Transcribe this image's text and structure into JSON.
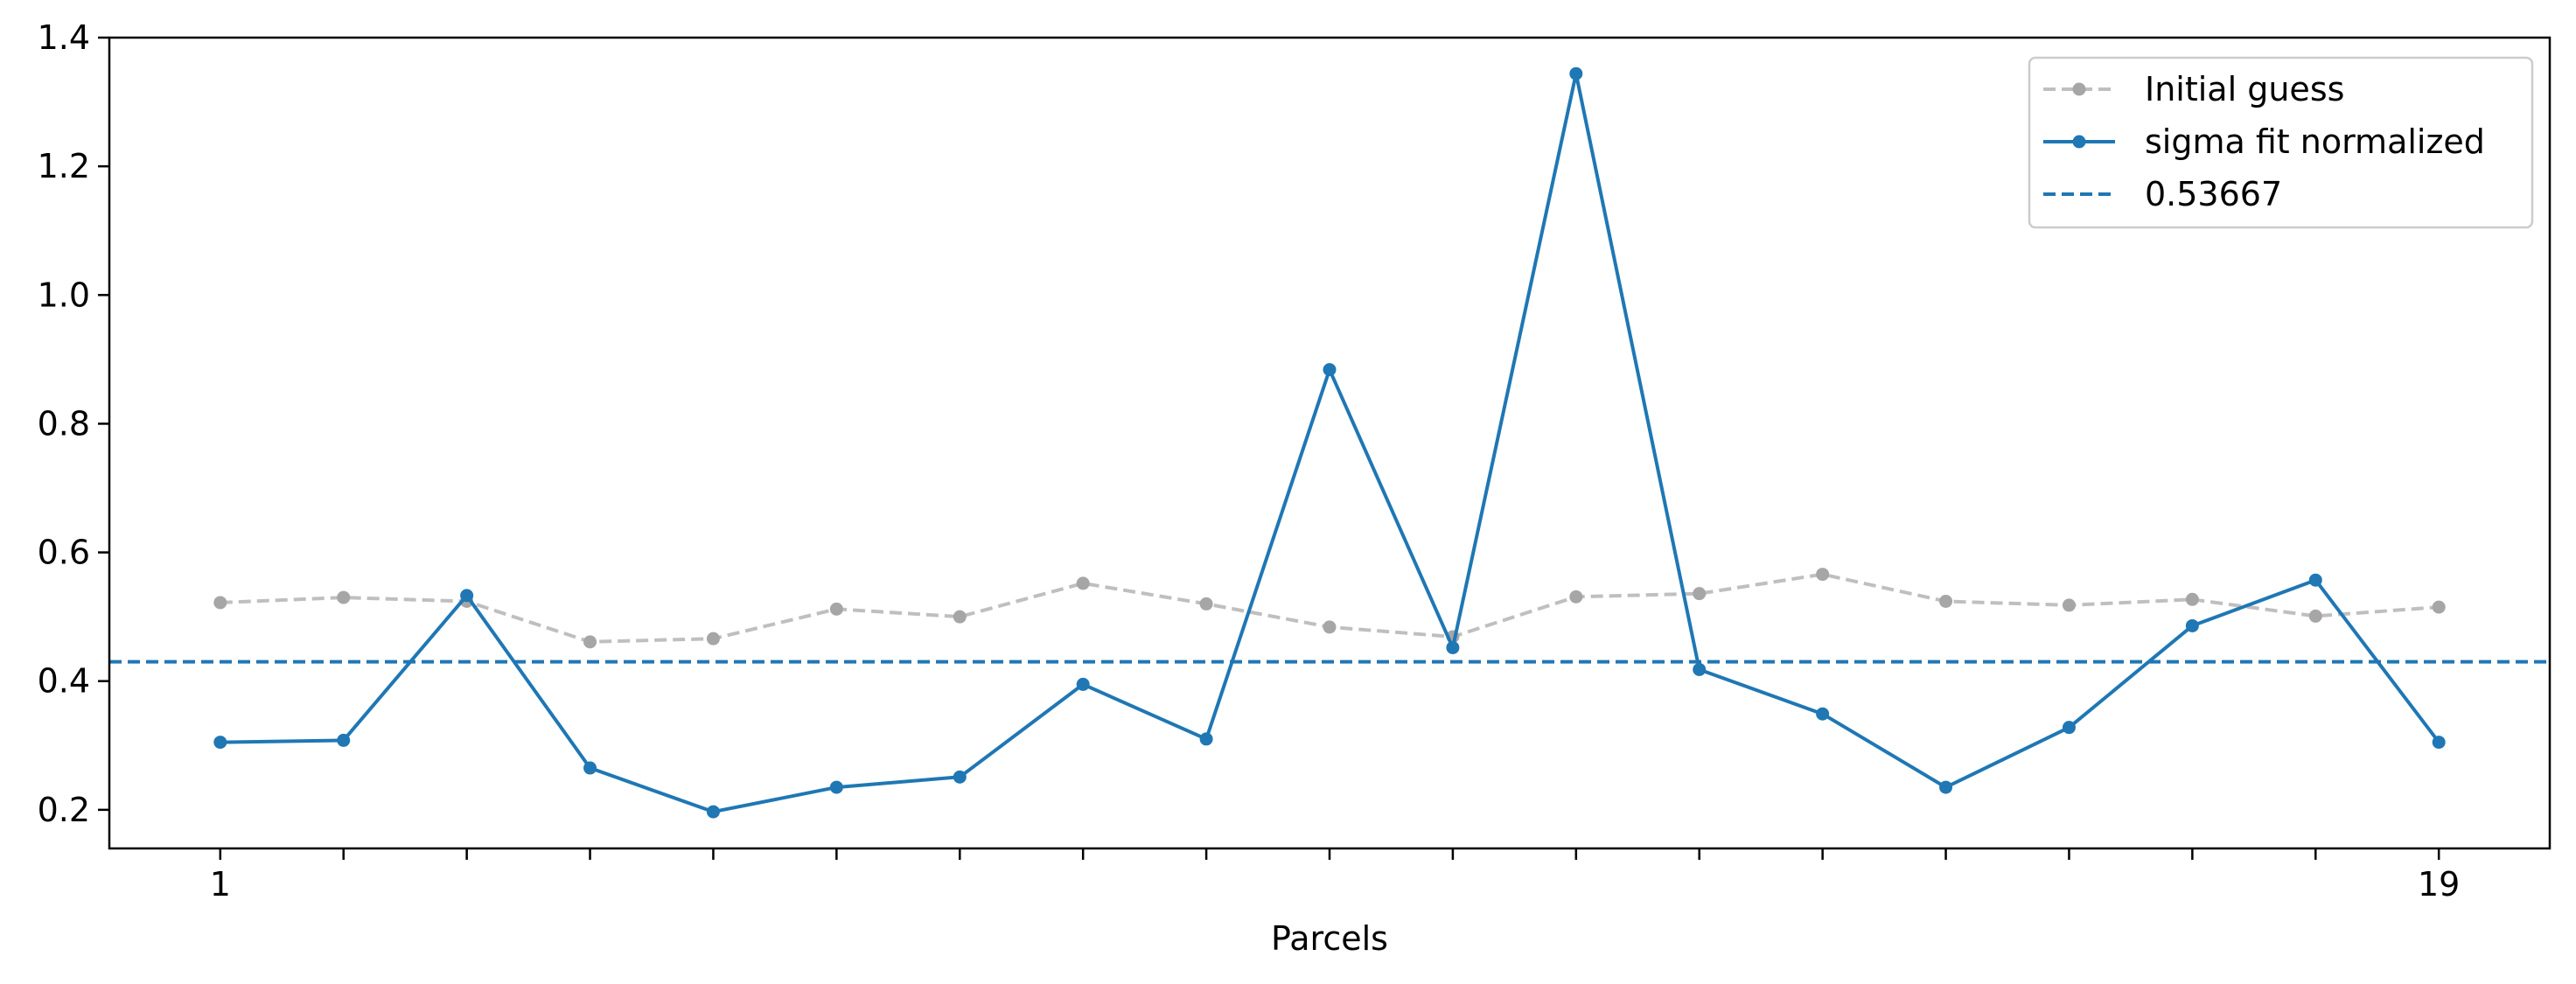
{
  "chart_data": {
    "type": "line",
    "xlabel": "Parcels",
    "ylabel": "",
    "title": "",
    "xlim": [
      0.1,
      19.9
    ],
    "ylim": [
      0.14,
      1.4
    ],
    "x": [
      1,
      2,
      3,
      4,
      5,
      6,
      7,
      8,
      9,
      10,
      11,
      12,
      13,
      14,
      15,
      16,
      17,
      18,
      19
    ],
    "x_tick_labels": [
      "1",
      "",
      "",
      "",
      "",
      "",
      "",
      "",
      "",
      "",
      "",
      "",
      "",
      "",
      "",
      "",
      "",
      "",
      "19"
    ],
    "y_ticks": [
      0.2,
      0.4,
      0.6,
      0.8,
      1.0,
      1.2,
      1.4
    ],
    "y_tick_labels": [
      "0.2",
      "0.4",
      "0.6",
      "0.8",
      "1.0",
      "1.2",
      "1.4"
    ],
    "series": [
      {
        "name": "Initial guess",
        "style": "dashed",
        "marker": "circle",
        "color": "#bfbfbf",
        "marker_color": "#a6a6a6",
        "values": [
          0.522,
          0.53,
          0.524,
          0.461,
          0.466,
          0.512,
          0.5,
          0.552,
          0.52,
          0.484,
          0.469,
          0.531,
          0.536,
          0.566,
          0.524,
          0.518,
          0.527,
          0.501,
          0.515
        ]
      },
      {
        "name": "sigma fit normalized",
        "style": "solid",
        "marker": "circle",
        "color": "#1f77b4",
        "values": [
          0.305,
          0.308,
          0.533,
          0.265,
          0.197,
          0.235,
          0.251,
          0.395,
          0.31,
          0.884,
          0.452,
          1.344,
          0.418,
          0.349,
          0.235,
          0.328,
          0.486,
          0.557,
          0.305
        ]
      }
    ],
    "hlines": [
      {
        "name": "0.53667",
        "value": 0.43,
        "style": "dashed",
        "color": "#1f77b4"
      }
    ],
    "legend": {
      "position": "top-right",
      "entries": [
        "Initial guess",
        "sigma fit normalized",
        "0.53667"
      ]
    },
    "grid": false
  }
}
